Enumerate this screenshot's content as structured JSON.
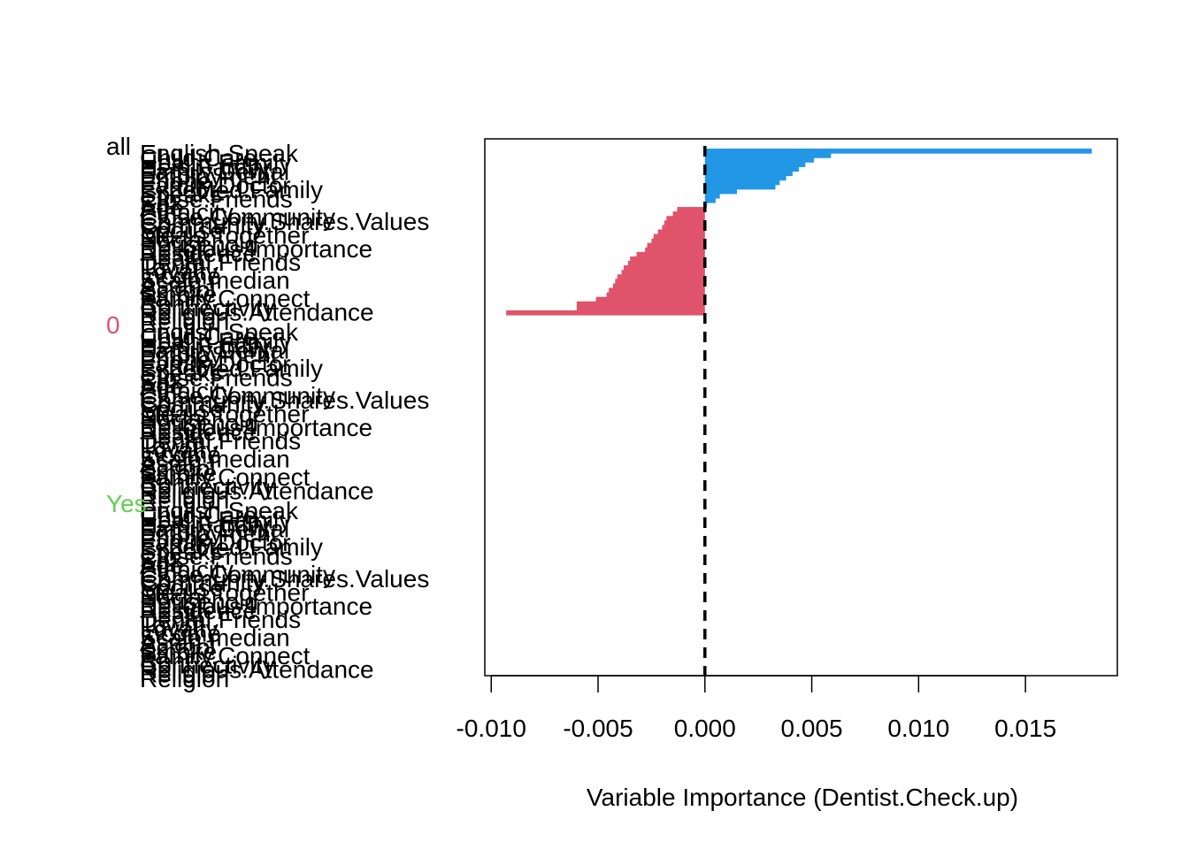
{
  "chart_data": {
    "type": "bar",
    "orientation": "horizontal",
    "xlabel": "Variable Importance (Dentist.Check.up)",
    "xlim": [
      -0.0103,
      0.0193
    ],
    "xticks": [
      "-0.010",
      "-0.005",
      "0.000",
      "0.005",
      "0.010",
      "0.015"
    ],
    "xtick_values": [
      -0.01,
      -0.005,
      0.0,
      0.005,
      0.01,
      0.015
    ],
    "reference_line": 0,
    "groups": [
      {
        "name": "all",
        "color": "#000000"
      },
      {
        "name": "0",
        "color": "#DF536B"
      },
      {
        "name": "Yes",
        "color": "#61D04F"
      }
    ],
    "categories": [
      "English.Speak",
      "Child.Care",
      "Health.Family",
      "Help.Family",
      "Family.Dental",
      "Employment",
      "Phone",
      "Family.Doctor",
      "Expected.Family",
      "Speaks",
      "Close.Friends",
      "Sex",
      "Age",
      "Ethnicity",
      "Close.Community",
      "Community.Shares.Values",
      "Community",
      "Spouse",
      "Meals.Together",
      "Social",
      "Household",
      "Religious.Importance",
      "Residence",
      "Health",
      "Dental.Friends",
      "Town",
      "Loyalty",
      "Income",
      "Scale.median",
      "Asian",
      "School",
      "Smoke",
      "Family.Connect",
      "Rent",
      "Connectivity",
      "Religious.Attendance",
      "Religion"
    ],
    "series": [
      {
        "name": "all",
        "values": [
          0.0181,
          0.0059,
          0.0051,
          0.0047,
          0.0044,
          0.0041,
          0.0038,
          0.0035,
          0.0033,
          0.0015,
          0.0007,
          0.0005,
          0.0001,
          -0.0013,
          -0.0015,
          -0.0018,
          -0.0019,
          -0.002,
          -0.0022,
          -0.0024,
          -0.0025,
          -0.0027,
          -0.0028,
          -0.0032,
          -0.0035,
          -0.0036,
          -0.0038,
          -0.0039,
          -0.0041,
          -0.0042,
          -0.0043,
          -0.0045,
          -0.0046,
          -0.0051,
          -0.006,
          -0.006,
          -0.0093
        ]
      }
    ],
    "label_extra_rows": [
      "Religion",
      "Religion",
      "Religion"
    ]
  }
}
